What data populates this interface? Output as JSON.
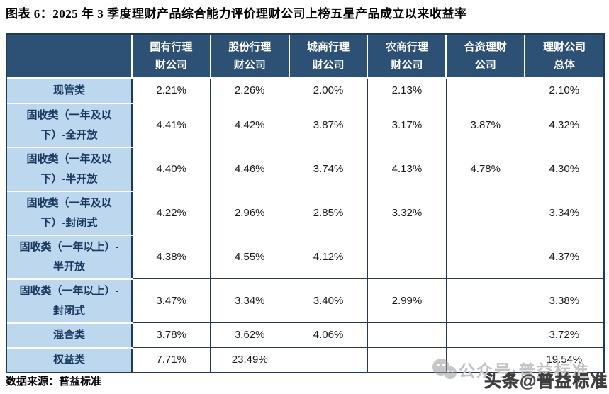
{
  "page": {
    "title": "图表 6：2025 年 3 季度理财产品综合能力评价理财公司上榜五星产品成立以来收益率",
    "source_note": "数据来源：普益标准"
  },
  "watermark": {
    "wechat_icon": "wechat-icon",
    "wechat_text": "公众号·普益标准",
    "toutiao_text": "头条@普益标准"
  },
  "colors": {
    "header_bg": "#2C5174",
    "label_bg": "#BDD7EE",
    "grid_border": "#1F3B57",
    "label_text": "#17375E"
  },
  "chart_data": {
    "type": "table",
    "title": "图表 6：2025 年 3 季度理财产品综合能力评价理财公司上榜五星产品成立以来收益率",
    "corner_label": "",
    "columns": [
      "国有行理财公司",
      "股份行理财公司",
      "城商行理财公司",
      "农商行理财公司",
      "合资理财公司",
      "理财公司总体"
    ],
    "rows": [
      {
        "label": "现管类",
        "values": [
          "2.21%",
          "2.26%",
          "2.00%",
          "2.13%",
          "",
          "2.10%"
        ]
      },
      {
        "label": "固收类（一年及以下）-全开放",
        "values": [
          "4.41%",
          "4.42%",
          "3.87%",
          "3.17%",
          "3.87%",
          "4.32%"
        ]
      },
      {
        "label": "固收类（一年及以下）-半开放",
        "values": [
          "4.40%",
          "4.46%",
          "3.74%",
          "4.13%",
          "4.78%",
          "4.30%"
        ]
      },
      {
        "label": "固收类（一年及以下）-封闭式",
        "values": [
          "4.22%",
          "2.96%",
          "2.85%",
          "3.32%",
          "",
          "3.34%"
        ]
      },
      {
        "label": "固收类（一年以上）-半开放",
        "values": [
          "4.38%",
          "4.55%",
          "4.12%",
          "",
          "",
          "4.37%"
        ]
      },
      {
        "label": "固收类（一年以上）-封闭式",
        "values": [
          "3.47%",
          "3.34%",
          "3.40%",
          "2.99%",
          "",
          "3.38%"
        ]
      },
      {
        "label": "混合类",
        "values": [
          "3.78%",
          "3.62%",
          "4.06%",
          "",
          "",
          "3.72%"
        ]
      },
      {
        "label": "权益类",
        "values": [
          "7.71%",
          "23.49%",
          "",
          "",
          "",
          "19.54%"
        ]
      }
    ],
    "source": "数据来源：普益标准"
  }
}
